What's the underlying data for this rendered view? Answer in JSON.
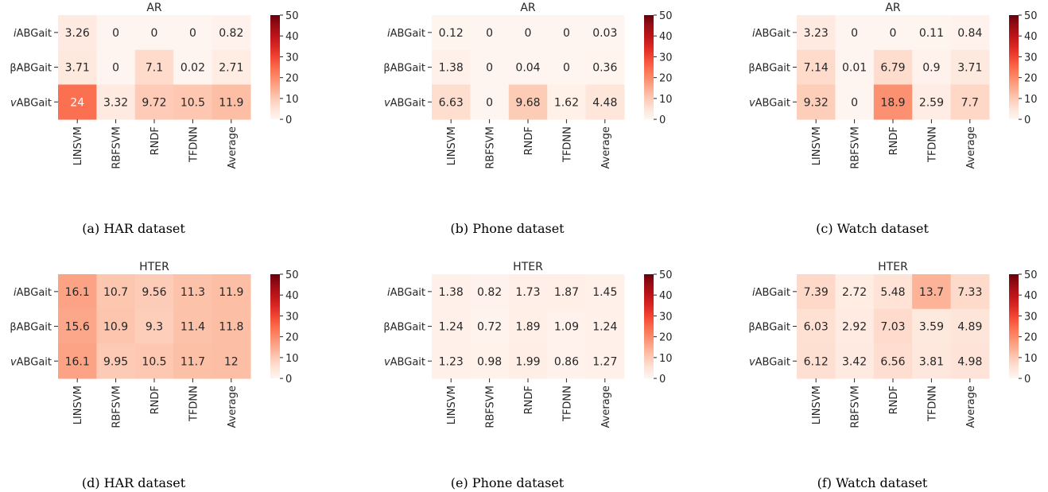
{
  "chart_data": [
    {
      "type": "heatmap",
      "title": "AR",
      "caption": "(a) HAR dataset",
      "rows": [
        "ABGait",
        "ABGait",
        "ABGait"
      ],
      "row_prefixes": [
        "i",
        "β",
        "v"
      ],
      "columns": [
        "LINSVM",
        "RBFSVM",
        "RNDF",
        "TFDNN",
        "Average"
      ],
      "values": [
        [
          3.26,
          0,
          0,
          0,
          0.82
        ],
        [
          3.71,
          0,
          7.1,
          0.02,
          2.71
        ],
        [
          24,
          3.32,
          9.72,
          10.5,
          11.9
        ]
      ],
      "labels": [
        [
          "3.26",
          "0",
          "0",
          "0",
          "0.82"
        ],
        [
          "3.71",
          "0",
          "7.1",
          "0.02",
          "2.71"
        ],
        [
          "24",
          "3.32",
          "9.72",
          "10.5",
          "11.9"
        ]
      ],
      "colorbar": {
        "range": [
          0,
          50
        ],
        "ticks": [
          "0",
          "10",
          "20",
          "30",
          "40",
          "50"
        ],
        "colormap": "Reds"
      }
    },
    {
      "type": "heatmap",
      "title": "AR",
      "caption": "(b) Phone dataset",
      "rows": [
        "ABGait",
        "ABGait",
        "ABGait"
      ],
      "row_prefixes": [
        "i",
        "β",
        "v"
      ],
      "columns": [
        "LINSVM",
        "RBFSVM",
        "RNDF",
        "TFDNN",
        "Average"
      ],
      "values": [
        [
          0.12,
          0,
          0,
          0,
          0.03
        ],
        [
          1.38,
          0,
          0.04,
          0,
          0.36
        ],
        [
          6.63,
          0,
          9.68,
          1.62,
          4.48
        ]
      ],
      "labels": [
        [
          "0.12",
          "0",
          "0",
          "0",
          "0.03"
        ],
        [
          "1.38",
          "0",
          "0.04",
          "0",
          "0.36"
        ],
        [
          "6.63",
          "0",
          "9.68",
          "1.62",
          "4.48"
        ]
      ],
      "colorbar": {
        "range": [
          0,
          50
        ],
        "ticks": [
          "0",
          "10",
          "20",
          "30",
          "40",
          "50"
        ],
        "colormap": "Reds"
      }
    },
    {
      "type": "heatmap",
      "title": "AR",
      "caption": "(c) Watch dataset",
      "rows": [
        "ABGait",
        "ABGait",
        "ABGait"
      ],
      "row_prefixes": [
        "i",
        "β",
        "v"
      ],
      "columns": [
        "LINSVM",
        "RBFSVM",
        "RNDF",
        "TFDNN",
        "Average"
      ],
      "values": [
        [
          3.23,
          0,
          0,
          0.11,
          0.84
        ],
        [
          7.14,
          0.01,
          6.79,
          0.9,
          3.71
        ],
        [
          9.32,
          0,
          18.9,
          2.59,
          7.7
        ]
      ],
      "labels": [
        [
          "3.23",
          "0",
          "0",
          "0.11",
          "0.84"
        ],
        [
          "7.14",
          "0.01",
          "6.79",
          "0.9",
          "3.71"
        ],
        [
          "9.32",
          "0",
          "18.9",
          "2.59",
          "7.7"
        ]
      ],
      "colorbar": {
        "range": [
          0,
          50
        ],
        "ticks": [
          "0",
          "10",
          "20",
          "30",
          "40",
          "50"
        ],
        "colormap": "Reds"
      }
    },
    {
      "type": "heatmap",
      "title": "HTER",
      "caption": "(d) HAR dataset",
      "rows": [
        "ABGait",
        "ABGait",
        "ABGait"
      ],
      "row_prefixes": [
        "i",
        "β",
        "v"
      ],
      "columns": [
        "LINSVM",
        "RBFSVM",
        "RNDF",
        "TFDNN",
        "Average"
      ],
      "values": [
        [
          16.1,
          10.7,
          9.56,
          11.3,
          11.9
        ],
        [
          15.6,
          10.9,
          9.3,
          11.4,
          11.8
        ],
        [
          16.1,
          9.95,
          10.5,
          11.7,
          12
        ]
      ],
      "labels": [
        [
          "16.1",
          "10.7",
          "9.56",
          "11.3",
          "11.9"
        ],
        [
          "15.6",
          "10.9",
          "9.3",
          "11.4",
          "11.8"
        ],
        [
          "16.1",
          "9.95",
          "10.5",
          "11.7",
          "12"
        ]
      ],
      "colorbar": {
        "range": [
          0,
          50
        ],
        "ticks": [
          "0",
          "10",
          "20",
          "30",
          "40",
          "50"
        ],
        "colormap": "Reds"
      }
    },
    {
      "type": "heatmap",
      "title": "HTER",
      "caption": "(e) Phone dataset",
      "rows": [
        "ABGait",
        "ABGait",
        "ABGait"
      ],
      "row_prefixes": [
        "i",
        "β",
        "v"
      ],
      "columns": [
        "LINSVM",
        "RBFSVM",
        "RNDF",
        "TFDNN",
        "Average"
      ],
      "values": [
        [
          1.38,
          0.82,
          1.73,
          1.87,
          1.45
        ],
        [
          1.24,
          0.72,
          1.89,
          1.09,
          1.24
        ],
        [
          1.23,
          0.98,
          1.99,
          0.86,
          1.27
        ]
      ],
      "labels": [
        [
          "1.38",
          "0.82",
          "1.73",
          "1.87",
          "1.45"
        ],
        [
          "1.24",
          "0.72",
          "1.89",
          "1.09",
          "1.24"
        ],
        [
          "1.23",
          "0.98",
          "1.99",
          "0.86",
          "1.27"
        ]
      ],
      "colorbar": {
        "range": [
          0,
          50
        ],
        "ticks": [
          "0",
          "10",
          "20",
          "30",
          "40",
          "50"
        ],
        "colormap": "Reds"
      }
    },
    {
      "type": "heatmap",
      "title": "HTER",
      "caption": "(f) Watch dataset",
      "rows": [
        "ABGait",
        "ABGait",
        "ABGait"
      ],
      "row_prefixes": [
        "i",
        "β",
        "v"
      ],
      "columns": [
        "LINSVM",
        "RBFSVM",
        "RNDF",
        "TFDNN",
        "Average"
      ],
      "values": [
        [
          7.39,
          2.72,
          5.48,
          13.7,
          7.33
        ],
        [
          6.03,
          2.92,
          7.03,
          3.59,
          4.89
        ],
        [
          6.12,
          3.42,
          6.56,
          3.81,
          4.98
        ]
      ],
      "labels": [
        [
          "7.39",
          "2.72",
          "5.48",
          "13.7",
          "7.33"
        ],
        [
          "6.03",
          "2.92",
          "7.03",
          "3.59",
          "4.89"
        ],
        [
          "6.12",
          "3.42",
          "6.56",
          "3.81",
          "4.98"
        ]
      ],
      "colorbar": {
        "range": [
          0,
          50
        ],
        "ticks": [
          "0",
          "10",
          "20",
          "30",
          "40",
          "50"
        ],
        "colormap": "Reds"
      }
    }
  ]
}
